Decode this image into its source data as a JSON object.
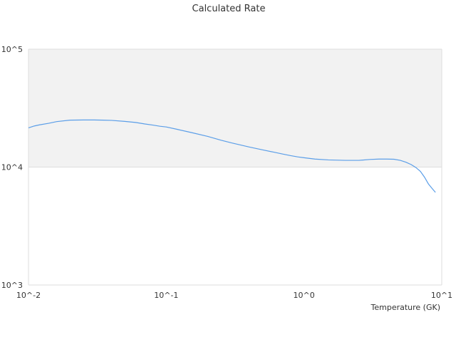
{
  "chart_data": {
    "type": "line",
    "title": "Calculated Rate",
    "xlabel": "Temperature (GK)",
    "ylabel": "",
    "x_scale": "log",
    "y_scale": "log",
    "xlim": [
      0.01,
      10
    ],
    "ylim": [
      1000,
      100000
    ],
    "x_tick_labels": [
      "10^-2",
      "10^-1",
      "10^0",
      "10^1"
    ],
    "y_tick_labels": [
      "10^3",
      "10^4",
      "10^5"
    ],
    "grid": true,
    "legend": "none",
    "colors": {
      "series": "#5b9ee8",
      "band": "#f2f2f2",
      "grid": "#dddddd"
    },
    "series": [
      {
        "x": [
          0.01,
          0.011,
          0.012,
          0.014,
          0.016,
          0.02,
          0.025,
          0.03,
          0.035,
          0.04,
          0.05,
          0.06,
          0.07,
          0.08,
          0.09,
          0.1,
          0.12,
          0.15,
          0.2,
          0.25,
          0.3,
          0.4,
          0.5,
          0.6,
          0.7,
          0.8,
          0.9,
          1.0,
          1.2,
          1.5,
          2.0,
          2.5,
          3.0,
          3.5,
          4.0,
          4.5,
          5.0,
          5.5,
          6.0,
          6.5,
          7.0,
          7.5,
          8.0,
          8.5,
          9.0
        ],
        "y": [
          21500,
          22300,
          22800,
          23500,
          24300,
          25000,
          25100,
          25100,
          25000,
          24900,
          24400,
          23900,
          23200,
          22700,
          22200,
          21900,
          20900,
          19700,
          18200,
          16900,
          16000,
          14800,
          14000,
          13400,
          12900,
          12500,
          12200,
          12000,
          11700,
          11500,
          11400,
          11400,
          11600,
          11700,
          11700,
          11650,
          11400,
          11000,
          10500,
          9900,
          9200,
          8200,
          7200,
          6600,
          6100
        ]
      }
    ]
  }
}
